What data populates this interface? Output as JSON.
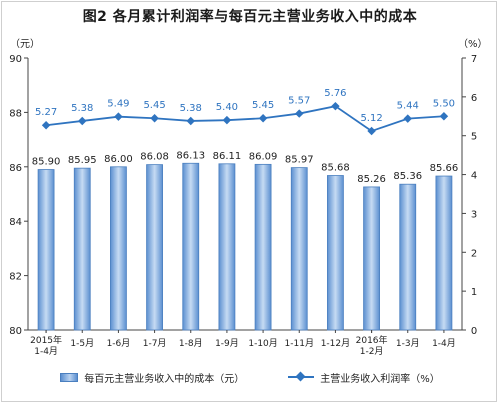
{
  "chart_data": {
    "title": "图2  各月累计利润率与每百元主营业务收入中的成本",
    "type": "bar+line",
    "categories": [
      [
        "2015年",
        "1-4月"
      ],
      [
        "1-5月"
      ],
      [
        "1-6月"
      ],
      [
        "1-7月"
      ],
      [
        "1-8月"
      ],
      [
        "1-9月"
      ],
      [
        "1-10月"
      ],
      [
        "1-11月"
      ],
      [
        "1-12月"
      ],
      [
        "2016年",
        "1-2月"
      ],
      [
        "1-3月"
      ],
      [
        "1-4月"
      ]
    ],
    "left_axis": {
      "unit": "（元）",
      "ylim": [
        80,
        90
      ],
      "ticks": [
        "80",
        "82",
        "84",
        "86",
        "88",
        "90"
      ]
    },
    "right_axis": {
      "unit": "（%）",
      "ylim": [
        0,
        7
      ],
      "ticks": [
        "0",
        "1",
        "2",
        "3",
        "4",
        "5",
        "6",
        "7"
      ]
    },
    "series": [
      {
        "name": "每百元主营业务收入中的成本（元）",
        "kind": "bar",
        "axis": "left",
        "values": [
          85.9,
          85.95,
          86.0,
          86.08,
          86.13,
          86.11,
          86.09,
          85.97,
          85.68,
          85.26,
          85.36,
          85.66
        ],
        "labels": [
          "85.90",
          "85.95",
          "86.00",
          "86.08",
          "86.13",
          "86.11",
          "86.09",
          "85.97",
          "85.68",
          "85.26",
          "85.36",
          "85.66"
        ]
      },
      {
        "name": "主营业务收入利润率（%）",
        "kind": "line",
        "axis": "right",
        "values": [
          5.27,
          5.38,
          5.49,
          5.45,
          5.38,
          5.4,
          5.45,
          5.57,
          5.76,
          5.12,
          5.44,
          5.5
        ],
        "labels": [
          "5.27",
          "5.38",
          "5.49",
          "5.45",
          "5.38",
          "5.40",
          "5.45",
          "5.57",
          "5.76",
          "5.12",
          "5.44",
          "5.50"
        ]
      }
    ],
    "colors": {
      "bar": "#7aa6dc",
      "bar_edge": "#4a7fbf",
      "line": "#2f74c0",
      "line_label": "#2f74c0",
      "bar_label": "#222222",
      "axis": "#444444"
    },
    "grid": false,
    "legend": "bottom-center"
  }
}
